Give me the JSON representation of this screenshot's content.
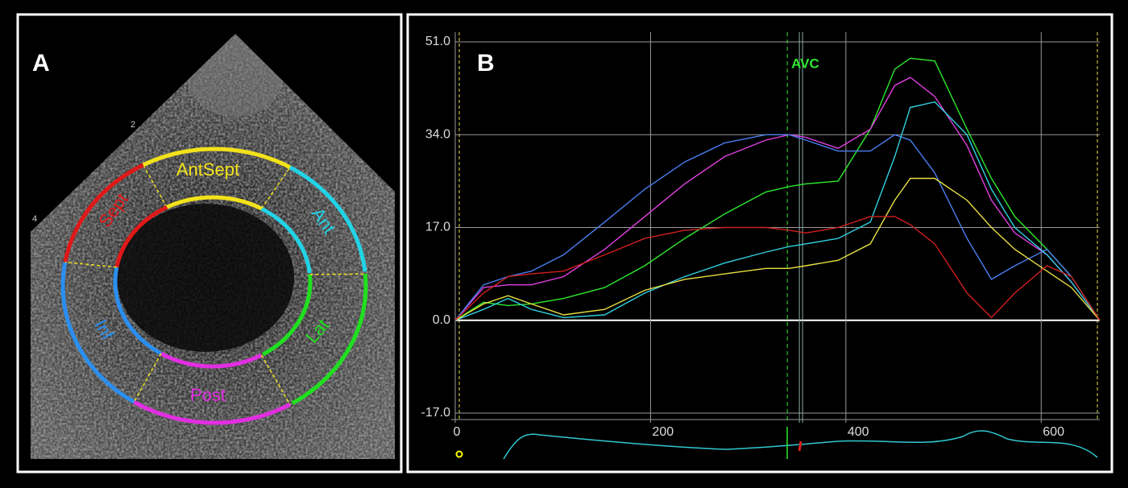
{
  "panel_a": {
    "label": "A",
    "segments": [
      {
        "name": "AntSept",
        "color": "#f2e21a"
      },
      {
        "name": "Ant",
        "color": "#22d3e6"
      },
      {
        "name": "Lat",
        "color": "#1fe01f"
      },
      {
        "name": "Post",
        "color": "#e22ee2"
      },
      {
        "name": "Inf",
        "color": "#2a8ff0"
      },
      {
        "name": "Sept",
        "color": "#e01818"
      }
    ],
    "depth_marks": [
      "2",
      "4"
    ]
  },
  "chart_data": {
    "type": "line",
    "panel_label": "B",
    "x": [
      0,
      29,
      54,
      78,
      111,
      153,
      194,
      235,
      276,
      318,
      342,
      359,
      392,
      425,
      450,
      466,
      491,
      524,
      549,
      573,
      606,
      631,
      660
    ],
    "series": [
      {
        "color": "#2ee82e",
        "values": [
          0,
          3.3,
          2.7,
          3,
          4,
          6,
          10,
          15,
          19.5,
          23.5,
          24.5,
          25,
          25.5,
          35,
          46,
          48,
          47.5,
          35,
          26,
          19,
          13,
          8,
          0
        ]
      },
      {
        "color": "#e040e0",
        "values": [
          0,
          6,
          6.5,
          6.5,
          8,
          13,
          19,
          25,
          30,
          33,
          34,
          33.5,
          31.5,
          35,
          43,
          44.5,
          41,
          32,
          22,
          16,
          12,
          7,
          0
        ]
      },
      {
        "color": "#4a7ff0",
        "values": [
          0,
          6.5,
          8,
          9,
          12,
          18,
          24,
          29,
          32.5,
          34,
          34,
          33,
          31,
          31,
          34,
          33,
          27,
          15,
          7.5,
          10,
          13,
          8,
          0
        ]
      },
      {
        "color": "#30d0e0",
        "values": [
          0,
          2,
          4,
          2,
          0.5,
          1,
          5,
          8,
          10.5,
          12.5,
          13.5,
          14,
          15,
          18,
          30,
          39,
          40,
          34,
          24,
          17,
          12,
          7,
          0
        ]
      },
      {
        "color": "#e8e040",
        "values": [
          0,
          3,
          4.5,
          3,
          1,
          2,
          5.5,
          7.5,
          8.5,
          9.5,
          9.5,
          10,
          11,
          14,
          22,
          26,
          26,
          22,
          17,
          13,
          9,
          6,
          0
        ]
      },
      {
        "color": "#d02020",
        "values": [
          0,
          5,
          8,
          8.5,
          9,
          12,
          15,
          16.5,
          17,
          17,
          16.5,
          16,
          17,
          19,
          19,
          17.5,
          14,
          5,
          0.5,
          5,
          10,
          8,
          0
        ]
      }
    ],
    "xlim": [
      0,
      660
    ],
    "ylim": [
      -17,
      51
    ],
    "xticks": [
      0,
      200,
      400,
      600
    ],
    "yticks": [
      {
        "value": -17,
        "label": "-17.0"
      },
      {
        "value": 0,
        "label": "0.0"
      },
      {
        "value": 17,
        "label": "17.0"
      },
      {
        "value": 34,
        "label": "34.0"
      },
      {
        "value": 51,
        "label": "51.0"
      }
    ],
    "grid": true,
    "annotations": [
      {
        "text": "AVC",
        "x": 340
      }
    ]
  }
}
